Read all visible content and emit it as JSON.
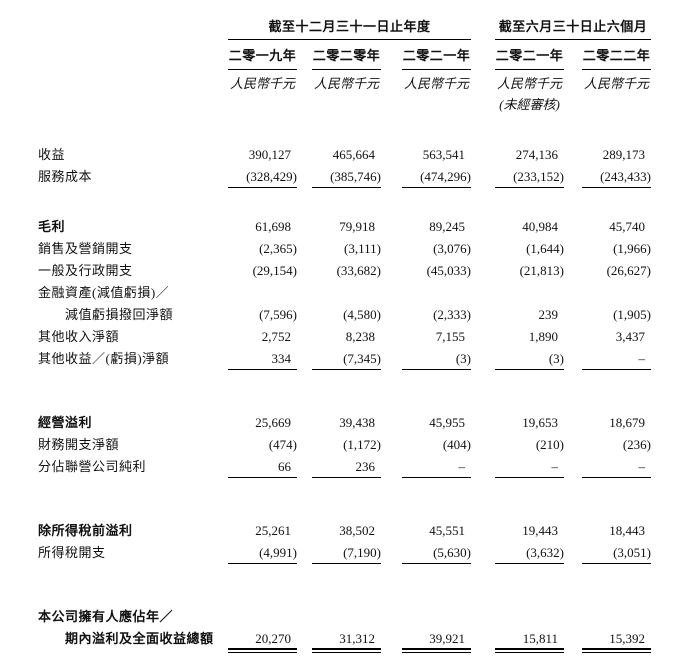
{
  "page": {
    "background": "#ffffff",
    "text_color": "#111111",
    "rule_color": "#000000"
  },
  "table": {
    "col_groups": [
      {
        "label": "截至十二月三十一日止年度",
        "span": 3
      },
      {
        "label": "截至六月三十日止六個月",
        "span": 2
      }
    ],
    "columns": [
      {
        "year": "二零一九年",
        "unit": "人民幣千元",
        "note": ""
      },
      {
        "year": "二零二零年",
        "unit": "人民幣千元",
        "note": ""
      },
      {
        "year": "二零二一年",
        "unit": "人民幣千元",
        "note": ""
      },
      {
        "year": "二零二一年",
        "unit": "人民幣千元",
        "note": "(未經審核)"
      },
      {
        "year": "二零二二年",
        "unit": "人民幣千元",
        "note": ""
      }
    ],
    "rows": [
      {
        "label": "收益",
        "values": [
          "390,127",
          "465,664",
          "563,541",
          "274,136",
          "289,173"
        ]
      },
      {
        "label": "服務成本",
        "values": [
          "(328,429)",
          "(385,746)",
          "(474,296)",
          "(233,152)",
          "(243,433)"
        ],
        "underline": 1
      },
      {
        "spacer": "sm"
      },
      {
        "label": "毛利",
        "bold": true,
        "values": [
          "61,698",
          "79,918",
          "89,245",
          "40,984",
          "45,740"
        ]
      },
      {
        "label": "銷售及營銷開支",
        "values": [
          "(2,365)",
          "(3,111)",
          "(3,076)",
          "(1,644)",
          "(1,966)"
        ]
      },
      {
        "label": "一般及行政開支",
        "values": [
          "(29,154)",
          "(33,682)",
          "(45,033)",
          "(21,813)",
          "(26,627)"
        ]
      },
      {
        "label": "金融資產(減值虧損)／",
        "values": [
          "",
          "",
          "",
          "",
          ""
        ]
      },
      {
        "label": "減值虧損撥回淨額",
        "indent": true,
        "values": [
          "(7,596)",
          "(4,580)",
          "(2,333)",
          "239",
          "(1,905)"
        ]
      },
      {
        "label": "其他收入淨額",
        "values": [
          "2,752",
          "8,238",
          "7,155",
          "1,890",
          "3,437"
        ]
      },
      {
        "label": "其他收益／(虧損)淨額",
        "values": [
          "334",
          "(7,345)",
          "(3)",
          "(3)",
          "–"
        ],
        "underline": 1
      },
      {
        "spacer": "lg"
      },
      {
        "label": "經營溢利",
        "bold": true,
        "values": [
          "25,669",
          "39,438",
          "45,955",
          "19,653",
          "18,679"
        ]
      },
      {
        "label": "財務開支淨額",
        "values": [
          "(474)",
          "(1,172)",
          "(404)",
          "(210)",
          "(236)"
        ]
      },
      {
        "label": "分佔聯營公司純利",
        "values": [
          "66",
          "236",
          "–",
          "–",
          "–"
        ],
        "underline": 1
      },
      {
        "spacer": "lg"
      },
      {
        "label": "除所得稅前溢利",
        "bold": true,
        "values": [
          "25,261",
          "38,502",
          "45,551",
          "19,443",
          "18,443"
        ]
      },
      {
        "label": "所得稅開支",
        "values": [
          "(4,991)",
          "(7,190)",
          "(5,630)",
          "(3,632)",
          "(3,051)"
        ],
        "underline": 1
      },
      {
        "spacer": "lg"
      },
      {
        "label": "本公司擁有人應佔年／",
        "bold": true,
        "values": [
          "",
          "",
          "",
          "",
          ""
        ]
      },
      {
        "label": "期內溢利及全面收益總額",
        "bold": true,
        "indent": true,
        "values": [
          "20,270",
          "31,312",
          "39,921",
          "15,811",
          "15,392"
        ],
        "underline": 2
      }
    ]
  }
}
